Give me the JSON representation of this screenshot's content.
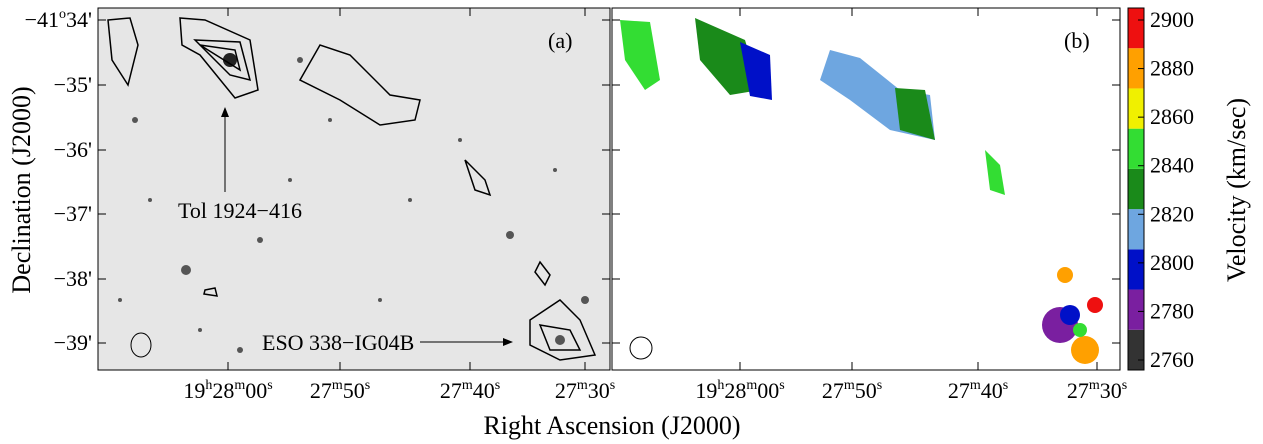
{
  "panels": [
    {
      "label": "(a)",
      "annotations": [
        {
          "text": "Tol 1924−416"
        },
        {
          "text": "ESO 338−IG04B"
        }
      ]
    },
    {
      "label": "(b)"
    }
  ],
  "axes": {
    "x_title": "Right Ascension (J2000)",
    "y_title": "Declination (J2000)",
    "dec_ticks": [
      [
        "−41",
        "o",
        "34'"
      ],
      [
        "−35'"
      ],
      [
        "−36'"
      ],
      [
        "−37'"
      ],
      [
        "−38'"
      ],
      [
        "−39'"
      ]
    ],
    "ra_ticks": [
      [
        "19",
        "h",
        "28",
        "m",
        "00",
        "s"
      ],
      [
        "27",
        "m",
        "50",
        "s"
      ],
      [
        "27",
        "m",
        "40",
        "s"
      ],
      [
        "27",
        "m",
        "30",
        "s"
      ]
    ]
  },
  "colorbar": {
    "title": "Velocity (km/sec)",
    "ticks": [
      2760,
      2780,
      2800,
      2820,
      2840,
      2860,
      2880,
      2900
    ],
    "colors": [
      "#333333",
      "#7a1fa0",
      "#0010c8",
      "#6ea6e0",
      "#1a8a1a",
      "#33dd33",
      "#f0f000",
      "#ffa000",
      "#ee1010"
    ]
  }
}
